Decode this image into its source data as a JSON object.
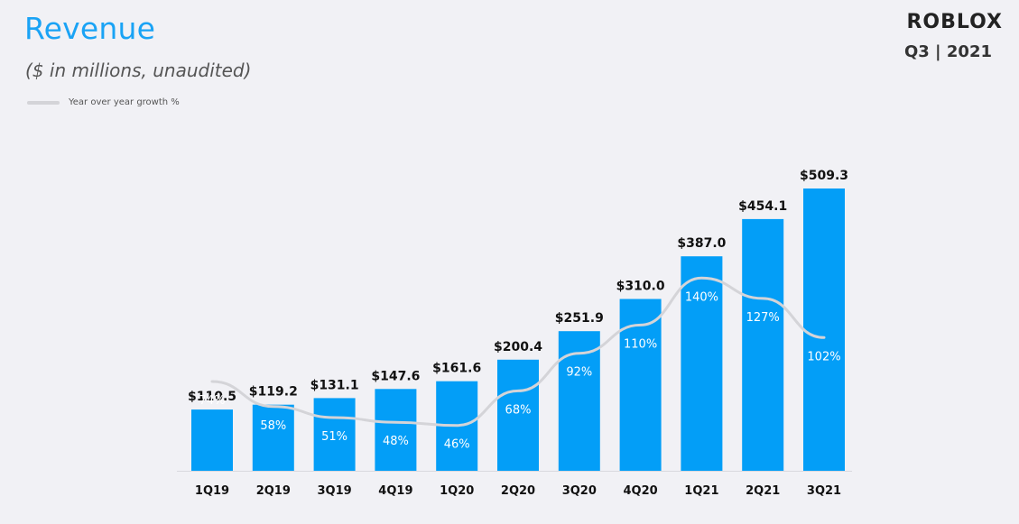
{
  "header": {
    "title": "Revenue",
    "subtitle": "($ in millions,  unaudited)",
    "logo": "ROBLOX",
    "period": "Q3 | 2021"
  },
  "colors": {
    "bar": "#039ef7",
    "growth_line": "#d4d4d8",
    "title": "#1aa3f5"
  },
  "chart_data": {
    "type": "bar",
    "title": "Revenue",
    "subtitle": "($ in millions,  unaudited)",
    "xlabel": "",
    "ylabel": "",
    "categories": [
      "1Q19",
      "2Q19",
      "3Q19",
      "4Q19",
      "1Q20",
      "2Q20",
      "3Q20",
      "4Q20",
      "1Q21",
      "2Q21",
      "3Q21"
    ],
    "series": [
      {
        "type": "bar",
        "values": [
          110.5,
          119.2,
          131.1,
          147.6,
          161.6,
          200.4,
          251.9,
          310.0,
          387.0,
          454.1,
          509.3
        ],
        "labels": [
          "$110.5",
          "$119.2",
          "$131.1",
          "$147.6",
          "$161.6",
          "$200.4",
          "$251.9",
          "$310.0",
          "$387.0",
          "$454.1",
          "$509.3"
        ]
      },
      {
        "name": "Year over year growth %",
        "type": "line",
        "values": [
          74,
          58,
          51,
          48,
          46,
          68,
          92,
          110,
          140,
          127,
          102
        ],
        "labels": [
          "74%",
          "58%",
          "51%",
          "48%",
          "46%",
          "68%",
          "92%",
          "110%",
          "140%",
          "127%",
          "102%"
        ]
      }
    ],
    "ylim": [
      0,
      509.3
    ],
    "grid": false,
    "legend": "top-left"
  }
}
